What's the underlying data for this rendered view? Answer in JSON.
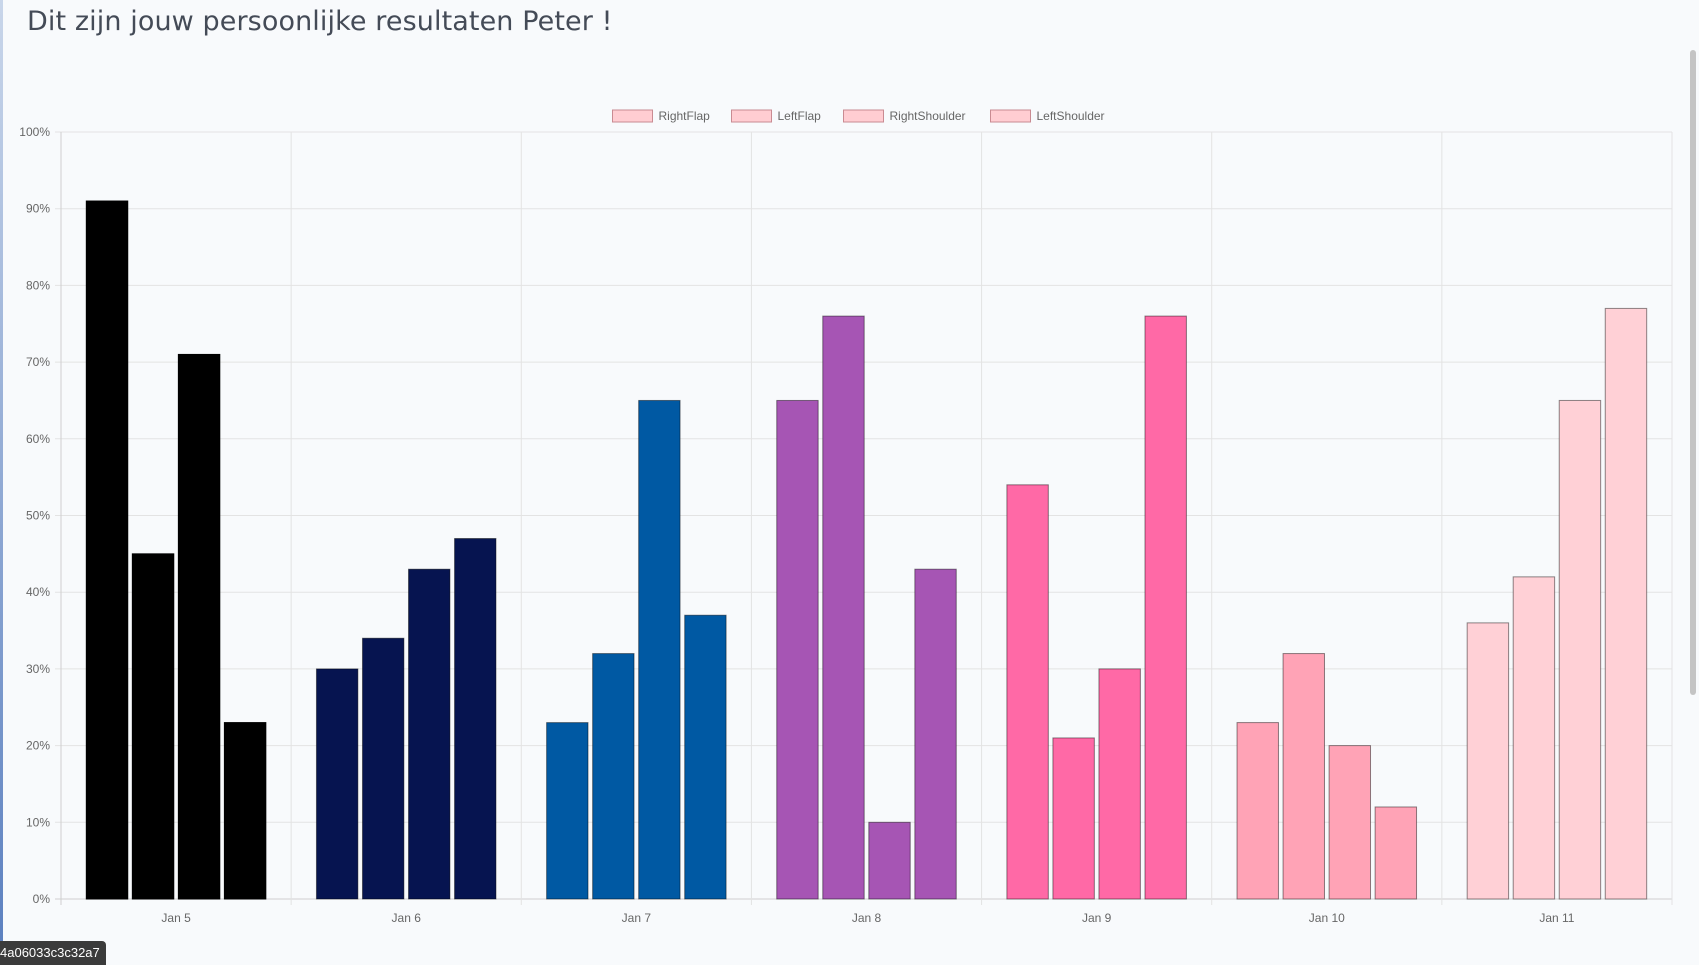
{
  "page": {
    "title": "Dit zijn jouw persoonlijke resultaten Peter !",
    "footer_tag": "4a06033c3c32a7"
  },
  "colors": {
    "background": "#f8fafc",
    "grid": "#e3e3e3",
    "axis_text": "#666666",
    "legend_fill": "#ffcdd2",
    "legend_border": "#c98b92"
  },
  "chart_data": {
    "type": "bar",
    "title": "",
    "xlabel": "",
    "ylabel": "",
    "ylim": [
      0,
      100
    ],
    "y_tick_step": 10,
    "y_tick_suffix": "%",
    "grid": true,
    "legend_position": "top",
    "categories": [
      "Jan 5",
      "Jan 6",
      "Jan 7",
      "Jan 8",
      "Jan 9",
      "Jan 10",
      "Jan 11"
    ],
    "category_colors": [
      "#000000",
      "#061450",
      "#0059a3",
      "#a655b4",
      "#ff69a6",
      "#ffa3b6",
      "#ffd0d6"
    ],
    "series": [
      {
        "name": "RightFlap",
        "values": [
          91,
          30,
          23,
          65,
          54,
          23,
          36
        ]
      },
      {
        "name": "LeftFlap",
        "values": [
          45,
          34,
          32,
          76,
          21,
          32,
          42
        ]
      },
      {
        "name": "RightShoulder",
        "values": [
          71,
          43,
          65,
          10,
          30,
          20,
          65
        ]
      },
      {
        "name": "LeftShoulder",
        "values": [
          23,
          47,
          37,
          43,
          76,
          12,
          77
        ]
      }
    ]
  }
}
